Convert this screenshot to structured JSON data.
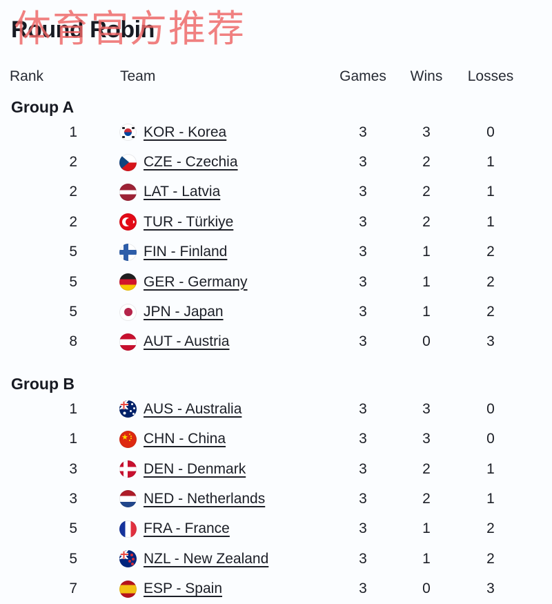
{
  "watermark": {
    "text": "体育官方推荐",
    "color": "#ee6565"
  },
  "page": {
    "title": "Round Robin"
  },
  "colors": {
    "background": "#fbfdff",
    "text": "#1b1e26",
    "title": "#171a22",
    "watermark": "#ee6565"
  },
  "table": {
    "columns": {
      "rank": "Rank",
      "team": "Team",
      "games": "Games",
      "wins": "Wins",
      "losses": "Losses"
    },
    "groups": [
      {
        "label": "Group A",
        "rows": [
          {
            "rank": "1",
            "flag": "kor",
            "team": "KOR - Korea",
            "games": "3",
            "wins": "3",
            "losses": "0"
          },
          {
            "rank": "2",
            "flag": "cze",
            "team": "CZE - Czechia",
            "games": "3",
            "wins": "2",
            "losses": "1"
          },
          {
            "rank": "2",
            "flag": "lat",
            "team": "LAT - Latvia",
            "games": "3",
            "wins": "2",
            "losses": "1"
          },
          {
            "rank": "2",
            "flag": "tur",
            "team": "TUR - Türkiye",
            "games": "3",
            "wins": "2",
            "losses": "1"
          },
          {
            "rank": "5",
            "flag": "fin",
            "team": "FIN - Finland",
            "games": "3",
            "wins": "1",
            "losses": "2"
          },
          {
            "rank": "5",
            "flag": "ger",
            "team": "GER - Germany",
            "games": "3",
            "wins": "1",
            "losses": "2"
          },
          {
            "rank": "5",
            "flag": "jpn",
            "team": "JPN - Japan",
            "games": "3",
            "wins": "1",
            "losses": "2"
          },
          {
            "rank": "8",
            "flag": "aut",
            "team": "AUT - Austria",
            "games": "3",
            "wins": "0",
            "losses": "3"
          }
        ]
      },
      {
        "label": "Group B",
        "rows": [
          {
            "rank": "1",
            "flag": "aus",
            "team": "AUS - Australia",
            "games": "3",
            "wins": "3",
            "losses": "0"
          },
          {
            "rank": "1",
            "flag": "chn",
            "team": "CHN - China",
            "games": "3",
            "wins": "3",
            "losses": "0"
          },
          {
            "rank": "3",
            "flag": "den",
            "team": "DEN - Denmark",
            "games": "3",
            "wins": "2",
            "losses": "1"
          },
          {
            "rank": "3",
            "flag": "ned",
            "team": "NED - Netherlands",
            "games": "3",
            "wins": "2",
            "losses": "1"
          },
          {
            "rank": "5",
            "flag": "fra",
            "team": "FRA - France",
            "games": "3",
            "wins": "1",
            "losses": "2"
          },
          {
            "rank": "5",
            "flag": "nzl",
            "team": "NZL - New Zealand",
            "games": "3",
            "wins": "1",
            "losses": "2"
          },
          {
            "rank": "7",
            "flag": "esp",
            "team": "ESP - Spain",
            "games": "3",
            "wins": "0",
            "losses": "3"
          }
        ]
      }
    ]
  }
}
